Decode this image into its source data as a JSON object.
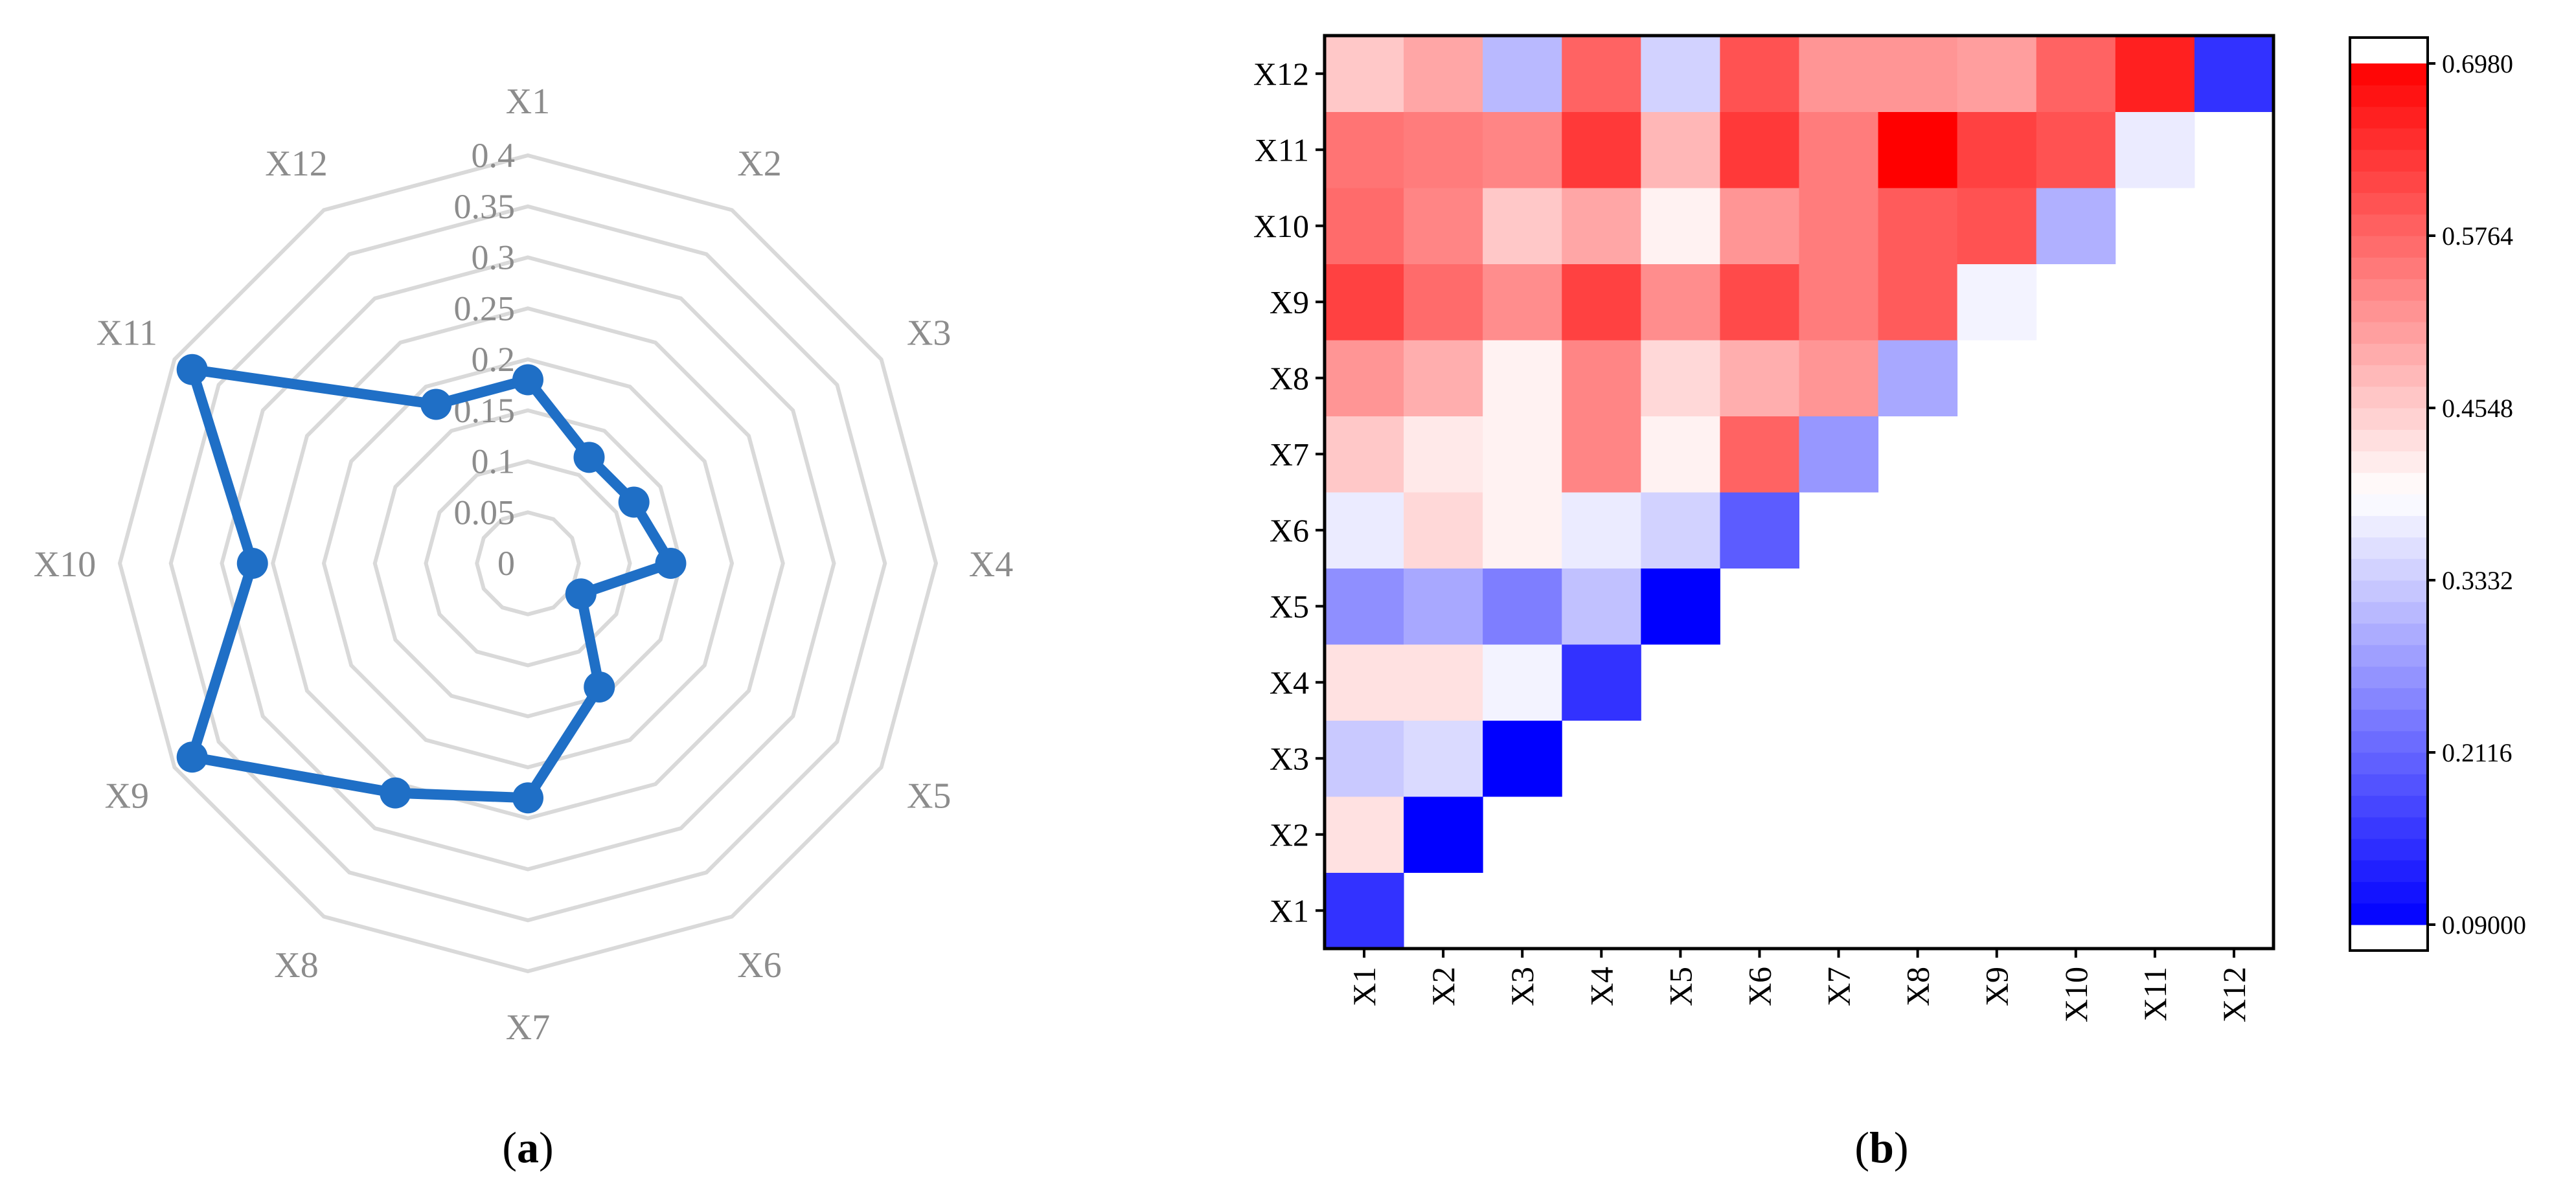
{
  "chart_data": [
    {
      "type": "radar",
      "panel_label": "a",
      "axes": [
        "X1",
        "X2",
        "X3",
        "X4",
        "X5",
        "X6",
        "X7",
        "X8",
        "X9",
        "X10",
        "X11",
        "X12"
      ],
      "radial_ticks": [
        "0",
        "0.05",
        "0.1",
        "0.15",
        "0.2",
        "0.25",
        "0.3",
        "0.35",
        "0.4"
      ],
      "rmax": 0.4,
      "grid": true,
      "series": [
        {
          "values": [
            0.18,
            0.12,
            0.12,
            0.14,
            0.06,
            0.14,
            0.23,
            0.26,
            0.38,
            0.27,
            0.38,
            0.18
          ]
        }
      ],
      "color": "#1f6fc6"
    },
    {
      "type": "heatmap",
      "panel_label": "b",
      "x_categories": [
        "X1",
        "X2",
        "X3",
        "X4",
        "X5",
        "X6",
        "X7",
        "X8",
        "X9",
        "X10",
        "X11",
        "X12"
      ],
      "y_categories": [
        "X1",
        "X2",
        "X3",
        "X4",
        "X5",
        "X6",
        "X7",
        "X8",
        "X9",
        "X10",
        "X11",
        "X12"
      ],
      "colorbar_ticks": [
        "0.09000",
        "0.2116",
        "0.3332",
        "0.4548",
        "0.5764",
        "0.6980"
      ],
      "vmin": 0.09,
      "vmax": 0.698,
      "colormap": "bwr",
      "values": [
        [
          0.15,
          null,
          null,
          null,
          null,
          null,
          null,
          null,
          null,
          null,
          null,
          null
        ],
        [
          0.43,
          0.09,
          null,
          null,
          null,
          null,
          null,
          null,
          null,
          null,
          null,
          null
        ],
        [
          0.33,
          0.35,
          0.09,
          null,
          null,
          null,
          null,
          null,
          null,
          null,
          null,
          null
        ],
        [
          0.43,
          0.43,
          0.38,
          0.15,
          null,
          null,
          null,
          null,
          null,
          null,
          null,
          null
        ],
        [
          0.26,
          0.29,
          0.24,
          0.32,
          0.09,
          null,
          null,
          null,
          null,
          null,
          null,
          null
        ],
        [
          0.37,
          0.44,
          0.41,
          0.37,
          0.34,
          0.2,
          null,
          null,
          null,
          null,
          null,
          null
        ],
        [
          0.46,
          0.42,
          0.41,
          0.54,
          0.41,
          0.58,
          0.27,
          null,
          null,
          null,
          null,
          null
        ],
        [
          0.52,
          0.49,
          0.41,
          0.54,
          0.44,
          0.49,
          0.52,
          0.29,
          null,
          null,
          null,
          null
        ],
        [
          0.62,
          0.57,
          0.53,
          0.62,
          0.53,
          0.61,
          0.55,
          0.59,
          0.38,
          null,
          null,
          null
        ],
        [
          0.57,
          0.54,
          0.46,
          0.5,
          0.41,
          0.52,
          0.55,
          0.59,
          0.6,
          0.3,
          null,
          null
        ],
        [
          0.56,
          0.55,
          0.54,
          0.63,
          0.48,
          0.63,
          0.55,
          0.7,
          0.62,
          0.6,
          0.37,
          null
        ],
        [
          0.46,
          0.5,
          0.31,
          0.58,
          0.34,
          0.6,
          0.52,
          0.52,
          0.51,
          0.58,
          0.66,
          0.15
        ]
      ]
    }
  ]
}
